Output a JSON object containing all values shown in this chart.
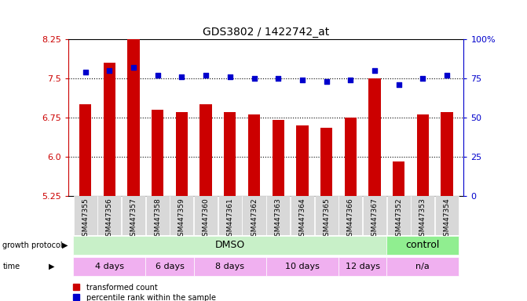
{
  "title": "GDS3802 / 1422742_at",
  "samples": [
    "GSM447355",
    "GSM447356",
    "GSM447357",
    "GSM447358",
    "GSM447359",
    "GSM447360",
    "GSM447361",
    "GSM447362",
    "GSM447363",
    "GSM447364",
    "GSM447365",
    "GSM447366",
    "GSM447367",
    "GSM447352",
    "GSM447353",
    "GSM447354"
  ],
  "bar_values": [
    7.0,
    7.8,
    8.4,
    6.9,
    6.85,
    7.0,
    6.85,
    6.8,
    6.7,
    6.6,
    6.55,
    6.75,
    7.5,
    5.9,
    6.8,
    6.85
  ],
  "dot_values": [
    79,
    80,
    82,
    77,
    76,
    77,
    76,
    75,
    75,
    74,
    73,
    74,
    80,
    71,
    75,
    77
  ],
  "bar_color": "#cc0000",
  "dot_color": "#0000cc",
  "ylim_left": [
    5.25,
    8.25
  ],
  "ylim_right": [
    0,
    100
  ],
  "yticks_left": [
    5.25,
    6.0,
    6.75,
    7.5,
    8.25
  ],
  "yticks_right": [
    0,
    25,
    50,
    75,
    100
  ],
  "ytick_labels_right": [
    "0",
    "25",
    "50",
    "75",
    "100%"
  ],
  "grid_values": [
    6.0,
    6.75,
    7.5
  ],
  "growth_protocol_label": "growth protocol",
  "time_label": "time",
  "dmso_label": "DMSO",
  "control_label": "control",
  "time_groups": [
    {
      "label": "4 days",
      "start": 0,
      "end": 3
    },
    {
      "label": "6 days",
      "start": 3,
      "end": 5
    },
    {
      "label": "8 days",
      "start": 5,
      "end": 8
    },
    {
      "label": "10 days",
      "start": 8,
      "end": 11
    },
    {
      "label": "12 days",
      "start": 11,
      "end": 13
    },
    {
      "label": "n/a",
      "start": 13,
      "end": 16
    }
  ],
  "dmso_range": [
    0,
    13
  ],
  "control_range": [
    13,
    16
  ],
  "legend_red": "transformed count",
  "legend_blue": "percentile rank within the sample",
  "background_color": "#ffffff",
  "plot_bg_color": "#ffffff",
  "xtick_bg_color": "#d8d8d8",
  "dmso_color": "#c8f0c8",
  "control_color": "#90ee90",
  "time_color": "#f0b0f0",
  "time_na_color": "#f0b0f0"
}
